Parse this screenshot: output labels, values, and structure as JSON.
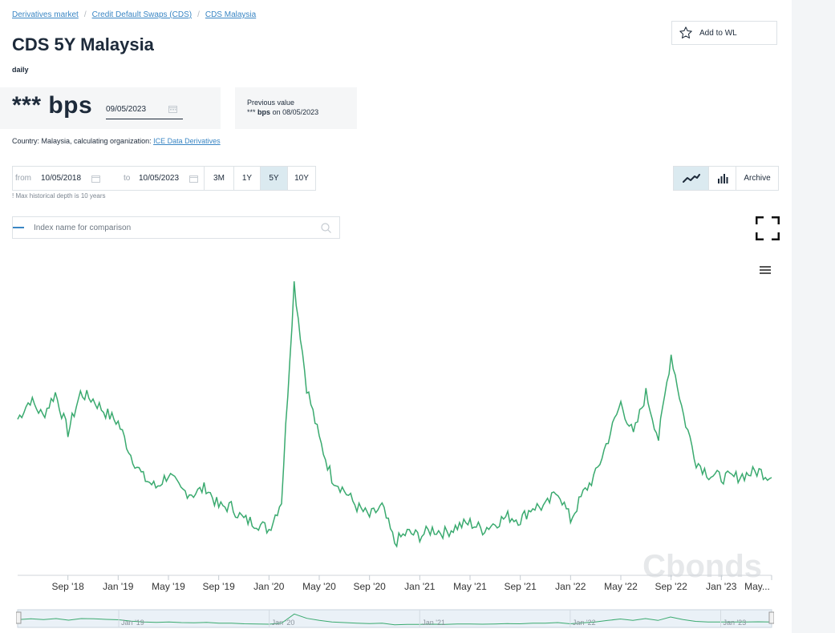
{
  "breadcrumb": [
    "Derivatives market",
    "Credit Default Swaps (CDS)",
    "CDS Malaysia"
  ],
  "title": "CDS 5Y Malaysia",
  "frequency": "daily",
  "watchlist": {
    "label": "Add to WL",
    "icon": "star-icon"
  },
  "current": {
    "value": "*** bps",
    "date": "09/05/2023"
  },
  "previous": {
    "label": "Previous value",
    "value": "***",
    "unit": "bps",
    "on": "on",
    "date": "08/05/2023"
  },
  "country_line": {
    "prefix": "Country: Malaysia, calculating organization:",
    "org": "ICE Data Derivatives"
  },
  "range": {
    "from_label": "from",
    "from": "10/05/2018",
    "to_label": "to",
    "to": "10/05/2023"
  },
  "periods": [
    {
      "label": "3M",
      "active": false
    },
    {
      "label": "1Y",
      "active": false
    },
    {
      "label": "5Y",
      "active": true
    },
    {
      "label": "10Y",
      "active": false
    }
  ],
  "depth_note": "! Max historical depth is 10 years",
  "view_buttons": {
    "line_icon": "line-chart-icon",
    "bar_icon": "bar-chart-icon",
    "archive": "Archive"
  },
  "compare": {
    "placeholder": "Index name for comparison"
  },
  "watermark": "Cbonds",
  "colors": {
    "line": "#3aaa6f",
    "accent": "#3a86c4",
    "active_bg": "#dbeaf0"
  },
  "chart_data": {
    "type": "line",
    "x_ticks": [
      "Sep '18",
      "Jan '19",
      "May '19",
      "Sep '19",
      "Jan '20",
      "May '20",
      "Sep '20",
      "Jan '21",
      "May '21",
      "Sep '21",
      "Jan '22",
      "May '22",
      "Sep '22",
      "Jan '23",
      "May..."
    ],
    "navigator_ticks": [
      "Jan '19",
      "Jan '20",
      "Jan '21",
      "Jan '22",
      "Jan '23"
    ],
    "y_axis_labels": "none shown",
    "series": [
      {
        "x": [
          "2018-05",
          "2018-06",
          "2018-07",
          "2018-08",
          "2018-09",
          "2018-10",
          "2018-11",
          "2018-12",
          "2019-01",
          "2019-02",
          "2019-03",
          "2019-04",
          "2019-05",
          "2019-06",
          "2019-07",
          "2019-08",
          "2019-09",
          "2019-10",
          "2019-11",
          "2019-12",
          "2020-01",
          "2020-02",
          "2020-03",
          "2020-04",
          "2020-05",
          "2020-06",
          "2020-07",
          "2020-08",
          "2020-09",
          "2020-10",
          "2020-11",
          "2020-12",
          "2021-01",
          "2021-02",
          "2021-03",
          "2021-04",
          "2021-05",
          "2021-06",
          "2021-07",
          "2021-08",
          "2021-09",
          "2021-10",
          "2021-11",
          "2021-12",
          "2022-01",
          "2022-02",
          "2022-03",
          "2022-04",
          "2022-05",
          "2022-06",
          "2022-07",
          "2022-08",
          "2022-09",
          "2022-10",
          "2022-11",
          "2022-12",
          "2023-01",
          "2023-02",
          "2023-03",
          "2023-04",
          "2023-05"
        ],
        "values": [
          78,
          84,
          79,
          86,
          74,
          86,
          84,
          80,
          77,
          67,
          60,
          57,
          61,
          56,
          55,
          57,
          51,
          51,
          47,
          46,
          44,
          53,
          120,
          88,
          72,
          60,
          56,
          51,
          48,
          51,
          40,
          43,
          42,
          44,
          43,
          45,
          46,
          44,
          46,
          48,
          47,
          51,
          51,
          56,
          47,
          55,
          61,
          72,
          83,
          73,
          86,
          72,
          98,
          79,
          65,
          61,
          60,
          60,
          61,
          62,
          60
        ]
      }
    ]
  }
}
